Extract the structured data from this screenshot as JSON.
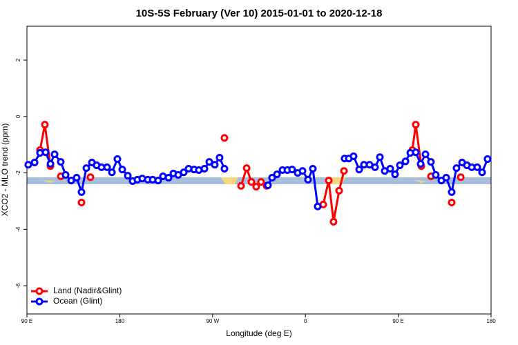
{
  "chart_data": {
    "type": "line",
    "title": "10S-5S February (Ver 10)   2015-01-01 to 2020-12-18",
    "x_label": "Longitude (deg E)",
    "y_label": "XCO2 - MLO trend (ppm)",
    "xlim": [
      90,
      540
    ],
    "ylim": [
      -7,
      3.2
    ],
    "xticks": [
      {
        "value": 90,
        "label": "90 E"
      },
      {
        "value": 180,
        "label": "180"
      },
      {
        "value": 270,
        "label": "90 W"
      },
      {
        "value": 360,
        "label": "0"
      },
      {
        "value": 450,
        "label": "90 E"
      },
      {
        "value": 540,
        "label": "180"
      }
    ],
    "yticks": [
      2,
      0,
      -2,
      -4,
      -6
    ],
    "legend": "bottom-left",
    "series": [
      {
        "name": "Land (Nadir&Glint)",
        "color": "#ff0000",
        "x": [
          102.7,
          107.4,
          112.8,
          null,
          122.8,
          null,
          142.9,
          null,
          151.6,
          null,
          281.5,
          null,
          297.6,
          303.0,
          307.6,
          312.3,
          317.0,
          322.4,
          null,
          377.3,
          382.6,
          387.3,
          392.7,
          397.4,
          null,
          463.7,
          467.0,
          472.4,
          null,
          481.7,
          null,
          501.8,
          null,
          510.6
        ],
        "values": [
          -1.19,
          -0.29,
          -1.76,
          null,
          -2.12,
          null,
          -3.05,
          null,
          -2.15,
          null,
          -0.76,
          null,
          -2.46,
          -1.83,
          -2.32,
          -2.49,
          -2.32,
          -2.46,
          null,
          -3.12,
          -2.27,
          -3.73,
          -2.63,
          -1.93,
          null,
          -1.19,
          -0.29,
          -1.76,
          null,
          -2.12,
          null,
          -3.05,
          null,
          -2.15
        ]
      },
      {
        "name": "Ocean (Glint)",
        "color": "#0000ff",
        "x": [
          91.3,
          97.4,
          102.7,
          108.1,
          112.8,
          116.8,
          122.8,
          127.5,
          132.9,
          138.2,
          142.9,
          147.6,
          153.0,
          157.6,
          162.3,
          167.7,
          172.4,
          177.7,
          182.4,
          187.8,
          192.5,
          197.1,
          201.8,
          207.2,
          211.9,
          217.2,
          221.9,
          227.3,
          232.0,
          236.7,
          242.0,
          246.7,
          252.1,
          256.7,
          262.1,
          266.8,
          272.1,
          276.8,
          281.5,
          null,
          323.7,
          327.7,
          332.4,
          337.8,
          342.5,
          347.1,
          352.5,
          357.2,
          362.5,
          367.2,
          371.9,
          null,
          398.0,
          402.1,
          406.7,
          412.1,
          416.8,
          422.2,
          427.5,
          432.2,
          436.9,
          442.2,
          446.9,
          451.6,
          457.0,
          461.7,
          467.0,
          471.7,
          476.4,
          481.7,
          486.4,
          491.8,
          496.5,
          501.8,
          506.5,
          511.9,
          516.6,
          521.3,
          526.6,
          531.3,
          536.6
        ],
        "values": [
          -1.71,
          -1.63,
          -1.29,
          -1.27,
          -1.68,
          -1.34,
          -1.61,
          -2.07,
          -2.27,
          -2.17,
          -2.68,
          -1.83,
          -1.63,
          -1.73,
          -1.8,
          -1.8,
          -1.98,
          -1.51,
          -1.88,
          -2.1,
          -2.29,
          -2.24,
          -2.2,
          -2.24,
          -2.24,
          -2.27,
          -2.12,
          -2.17,
          -2.02,
          -2.07,
          -1.98,
          -1.85,
          -1.88,
          -1.9,
          -1.85,
          -1.61,
          -1.71,
          -1.46,
          -1.85,
          null,
          -2.44,
          -2.17,
          -2.05,
          -1.9,
          -1.9,
          -1.88,
          -2.0,
          -1.93,
          -2.24,
          -1.85,
          -3.19,
          null,
          -1.49,
          -1.49,
          -1.41,
          -1.88,
          -1.71,
          -1.71,
          -1.8,
          -1.44,
          -1.93,
          -1.85,
          -2.05,
          -1.73,
          -1.59,
          -1.29,
          -1.27,
          -1.68,
          -1.34,
          -1.61,
          -2.07,
          -2.27,
          -2.17,
          -2.68,
          -1.83,
          -1.63,
          -1.73,
          -1.8,
          -1.8,
          -1.98,
          -1.51
        ]
      }
    ]
  }
}
